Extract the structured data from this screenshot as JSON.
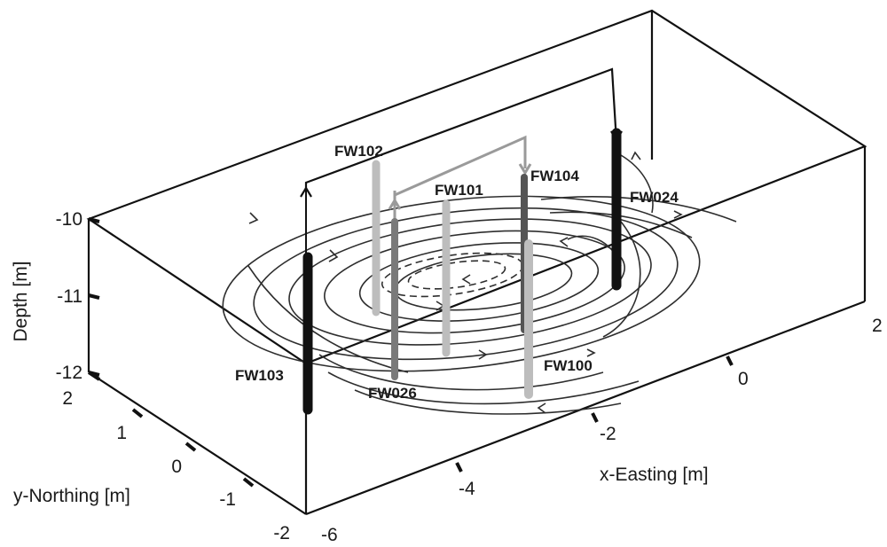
{
  "axes": {
    "depth": {
      "label": "Depth [m]",
      "ticks": [
        "-10",
        "-11",
        "-12"
      ]
    },
    "northing": {
      "label": "y-Northing [m]",
      "ticks": [
        "2",
        "1",
        "0",
        "-1",
        "-2"
      ]
    },
    "easting": {
      "label": "x-Easting [m]",
      "ticks": [
        "-6",
        "-4",
        "-2",
        "0",
        "2"
      ]
    }
  },
  "wells": [
    {
      "id": "FW102",
      "label": "FW102"
    },
    {
      "id": "FW101",
      "label": "FW101"
    },
    {
      "id": "FW104",
      "label": "FW104"
    },
    {
      "id": "FW024",
      "label": "FW024"
    },
    {
      "id": "FW103",
      "label": "FW103"
    },
    {
      "id": "FW026",
      "label": "FW026"
    },
    {
      "id": "FW100",
      "label": "FW100"
    }
  ],
  "colors": {
    "extraction_well": "#111111",
    "injection_well_light": "#bdbdbd",
    "injection_well_mid": "#7a7a7a",
    "connection_pipe_grey": "#9a9a9a"
  }
}
